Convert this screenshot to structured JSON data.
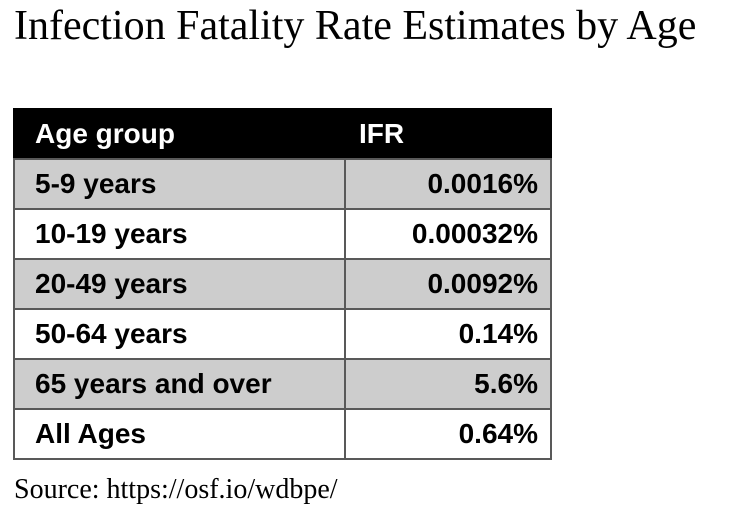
{
  "title": "Infection Fatality Rate Estimates by Age",
  "table": {
    "headers": {
      "age_group": "Age group",
      "ifr": "IFR"
    },
    "rows": [
      {
        "age_group": "5-9 years",
        "ifr": "0.0016%"
      },
      {
        "age_group": "10-19 years",
        "ifr": "0.00032%"
      },
      {
        "age_group": "20-49 years",
        "ifr": "0.0092%"
      },
      {
        "age_group": "50-64 years",
        "ifr": "0.14%"
      },
      {
        "age_group": "65 years and over",
        "ifr": "5.6%"
      },
      {
        "age_group": "All Ages",
        "ifr": "0.64%"
      }
    ]
  },
  "source": "Source: https://osf.io/wdbpe/",
  "colors": {
    "header_bg": "#000000",
    "header_text": "#ffffff",
    "row_gray_bg": "#cdcdcd",
    "row_white_bg": "#ffffff",
    "border": "#595959",
    "text": "#000000",
    "page_bg": "#ffffff"
  },
  "chart_data": {
    "type": "table",
    "title": "Infection Fatality Rate Estimates by Age",
    "columns": [
      "Age group",
      "IFR"
    ],
    "categories": [
      "5-9 years",
      "10-19 years",
      "20-49 years",
      "50-64 years",
      "65 years and over",
      "All Ages"
    ],
    "values_percent": [
      0.0016,
      0.00032,
      0.0092,
      0.14,
      5.6,
      0.64
    ],
    "value_labels": [
      "0.0016%",
      "0.00032%",
      "0.0092%",
      "0.14%",
      "5.6%",
      "0.64%"
    ],
    "source": "Source: https://osf.io/wdbpe/",
    "layout": "header row black, data rows alternating gray/white, age column left-aligned, IFR values right-aligned"
  }
}
